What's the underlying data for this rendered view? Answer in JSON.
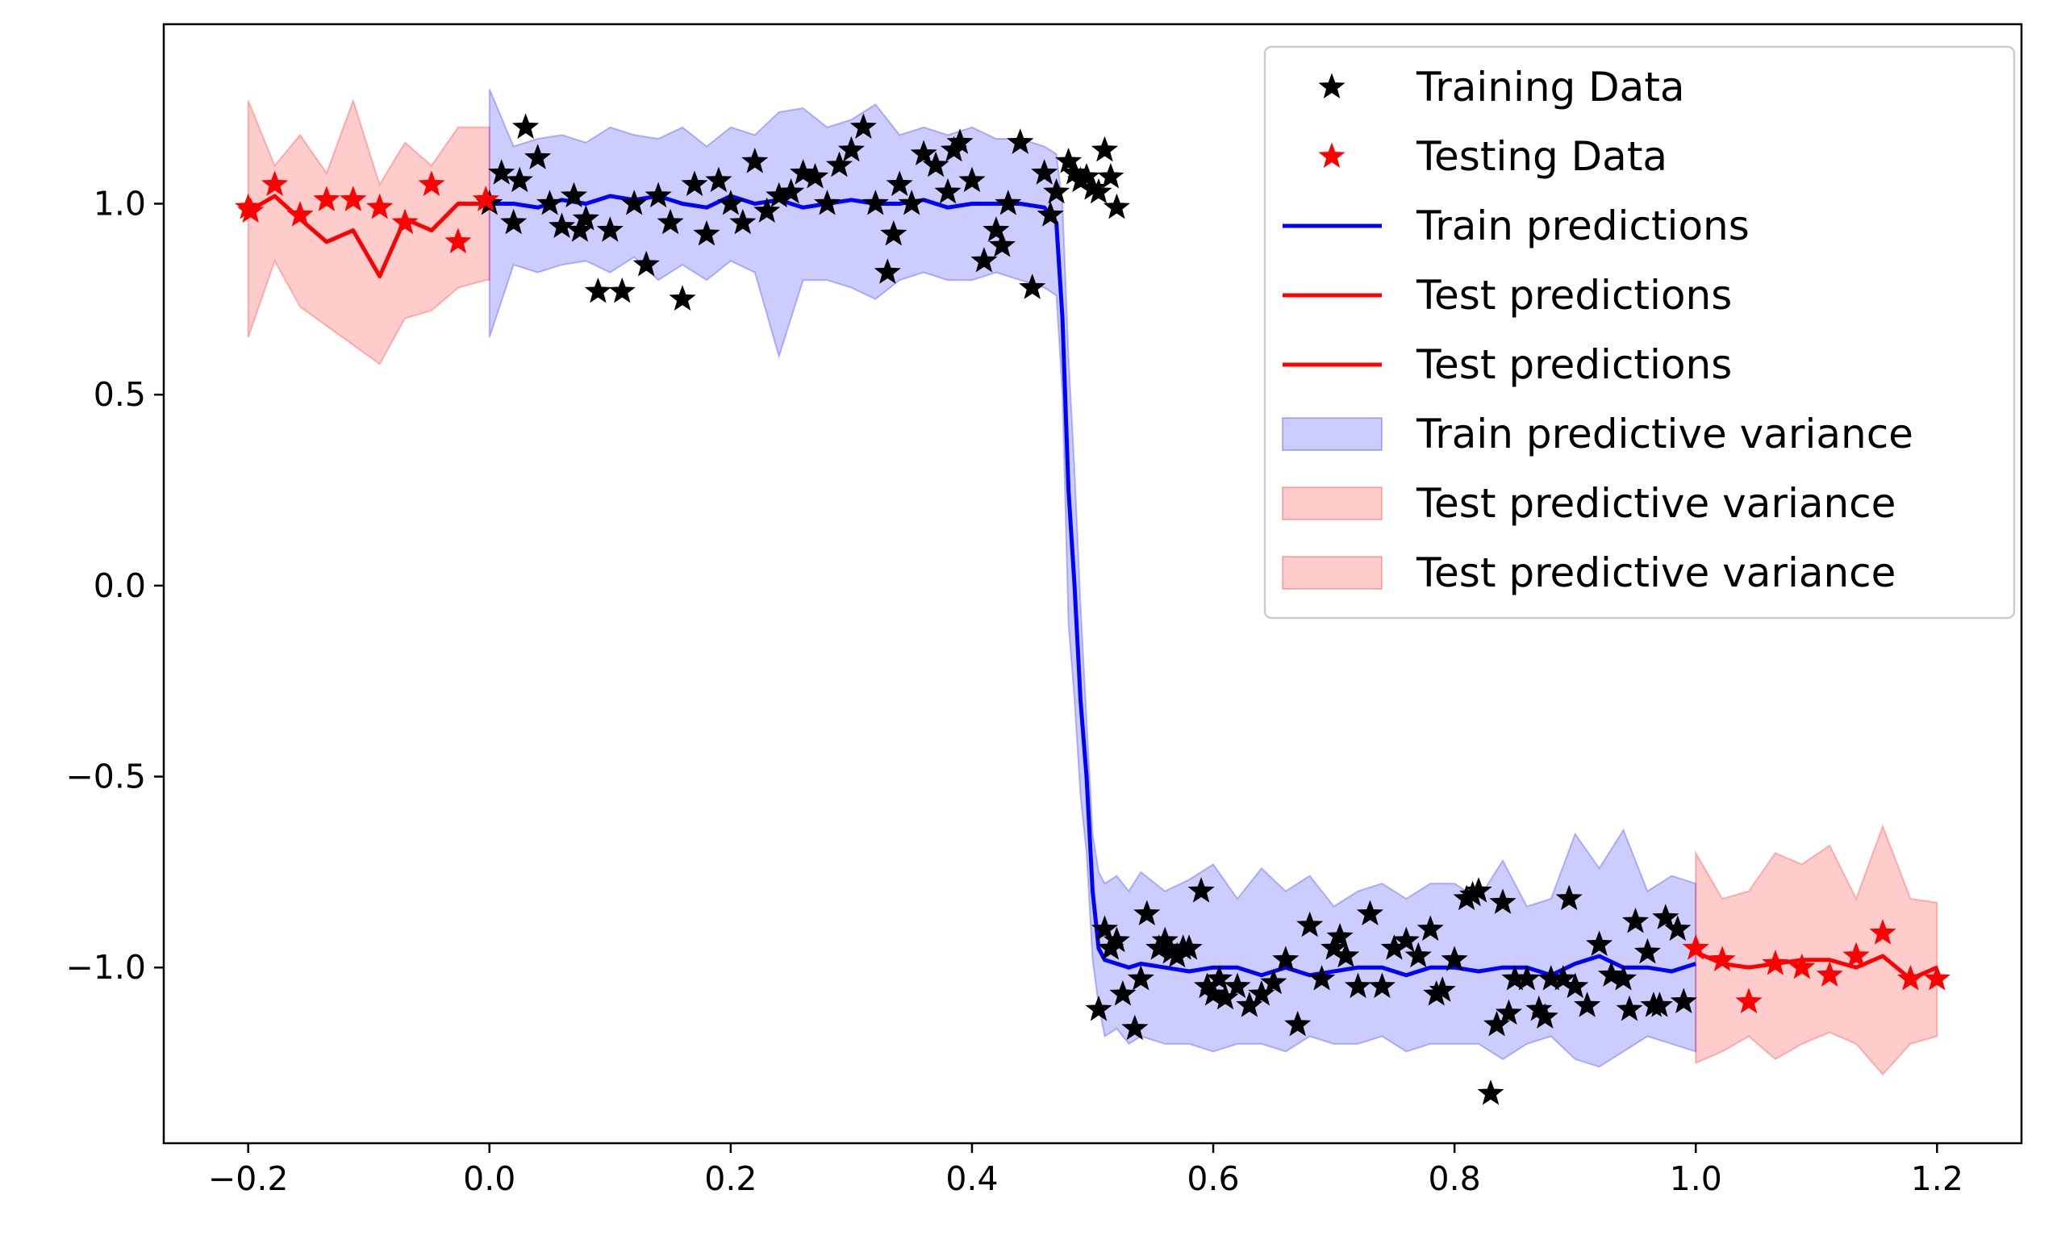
{
  "chart_data": {
    "type": "line",
    "title": "",
    "xlabel": "",
    "ylabel": "",
    "xlim": [
      -0.27,
      1.27
    ],
    "ylim": [
      -1.46,
      1.47
    ],
    "xticks": [
      -0.2,
      0.0,
      0.2,
      0.4,
      0.6,
      0.8,
      1.0,
      1.2
    ],
    "yticks": [
      -1.0,
      -0.5,
      0.0,
      0.5,
      1.0
    ],
    "xtick_labels": [
      "−0.2",
      "0.0",
      "0.2",
      "0.4",
      "0.6",
      "0.8",
      "1.0",
      "1.2"
    ],
    "ytick_labels": [
      "−1.0",
      "−0.5",
      "0.0",
      "0.5",
      "1.0"
    ],
    "grid": false,
    "legend_position": "top-right",
    "legend": [
      {
        "label": "Training Data",
        "kind": "marker",
        "color": "#000000"
      },
      {
        "label": "Testing Data",
        "kind": "marker",
        "color": "#ff0000"
      },
      {
        "label": "Train predictions",
        "kind": "line",
        "color": "#0000ff"
      },
      {
        "label": "Test predictions",
        "kind": "line",
        "color": "#ff0000"
      },
      {
        "label": "Test predictions",
        "kind": "line",
        "color": "#ff0000"
      },
      {
        "label": "Train predictive variance",
        "kind": "patch",
        "color": "#0000ff"
      },
      {
        "label": "Test predictive variance",
        "kind": "patch",
        "color": "#ff0000"
      },
      {
        "label": "Test predictive variance",
        "kind": "patch",
        "color": "#ff0000"
      }
    ],
    "series": [
      {
        "name": "Training Data",
        "kind": "scatter",
        "color": "#000000",
        "points": [
          [
            0.0,
            1.0
          ],
          [
            0.01,
            1.08
          ],
          [
            0.02,
            0.95
          ],
          [
            0.025,
            1.06
          ],
          [
            0.03,
            1.2
          ],
          [
            0.04,
            1.12
          ],
          [
            0.05,
            1.0
          ],
          [
            0.06,
            0.94
          ],
          [
            0.07,
            1.02
          ],
          [
            0.075,
            0.93
          ],
          [
            0.08,
            0.96
          ],
          [
            0.09,
            0.77
          ],
          [
            0.1,
            0.93
          ],
          [
            0.11,
            0.77
          ],
          [
            0.12,
            1.0
          ],
          [
            0.13,
            0.84
          ],
          [
            0.14,
            1.02
          ],
          [
            0.15,
            0.95
          ],
          [
            0.16,
            0.75
          ],
          [
            0.17,
            1.05
          ],
          [
            0.18,
            0.92
          ],
          [
            0.19,
            1.06
          ],
          [
            0.2,
            1.0
          ],
          [
            0.21,
            0.95
          ],
          [
            0.22,
            1.11
          ],
          [
            0.23,
            0.98
          ],
          [
            0.24,
            1.02
          ],
          [
            0.25,
            1.03
          ],
          [
            0.26,
            1.08
          ],
          [
            0.27,
            1.07
          ],
          [
            0.28,
            1.0
          ],
          [
            0.29,
            1.1
          ],
          [
            0.3,
            1.14
          ],
          [
            0.31,
            1.2
          ],
          [
            0.32,
            1.0
          ],
          [
            0.33,
            0.82
          ],
          [
            0.335,
            0.92
          ],
          [
            0.34,
            1.05
          ],
          [
            0.35,
            1.0
          ],
          [
            0.36,
            1.13
          ],
          [
            0.37,
            1.1
          ],
          [
            0.38,
            1.03
          ],
          [
            0.385,
            1.14
          ],
          [
            0.39,
            1.16
          ],
          [
            0.4,
            1.06
          ],
          [
            0.41,
            0.85
          ],
          [
            0.42,
            0.93
          ],
          [
            0.425,
            0.89
          ],
          [
            0.43,
            1.0
          ],
          [
            0.44,
            1.16
          ],
          [
            0.45,
            0.78
          ],
          [
            0.46,
            1.08
          ],
          [
            0.465,
            0.97
          ],
          [
            0.47,
            1.03
          ],
          [
            0.48,
            1.11
          ],
          [
            0.485,
            1.08
          ],
          [
            0.49,
            1.06
          ],
          [
            0.495,
            1.07
          ],
          [
            0.5,
            1.04
          ],
          [
            0.505,
            1.03
          ],
          [
            0.51,
            1.14
          ],
          [
            0.515,
            1.07
          ],
          [
            0.52,
            0.99
          ],
          [
            0.505,
            -1.11
          ],
          [
            0.51,
            -0.9
          ],
          [
            0.515,
            -0.95
          ],
          [
            0.52,
            -0.93
          ],
          [
            0.525,
            -1.07
          ],
          [
            0.535,
            -1.16
          ],
          [
            0.54,
            -1.03
          ],
          [
            0.545,
            -0.86
          ],
          [
            0.555,
            -0.95
          ],
          [
            0.56,
            -0.93
          ],
          [
            0.565,
            -0.96
          ],
          [
            0.57,
            -0.97
          ],
          [
            0.575,
            -0.95
          ],
          [
            0.58,
            -0.95
          ],
          [
            0.59,
            -0.8
          ],
          [
            0.595,
            -1.05
          ],
          [
            0.6,
            -1.07
          ],
          [
            0.605,
            -1.03
          ],
          [
            0.61,
            -1.08
          ],
          [
            0.62,
            -1.05
          ],
          [
            0.63,
            -1.1
          ],
          [
            0.64,
            -1.07
          ],
          [
            0.65,
            -1.04
          ],
          [
            0.66,
            -0.98
          ],
          [
            0.67,
            -1.15
          ],
          [
            0.68,
            -0.89
          ],
          [
            0.69,
            -1.03
          ],
          [
            0.7,
            -0.95
          ],
          [
            0.705,
            -0.92
          ],
          [
            0.71,
            -0.97
          ],
          [
            0.72,
            -1.05
          ],
          [
            0.73,
            -0.86
          ],
          [
            0.74,
            -1.05
          ],
          [
            0.75,
            -0.95
          ],
          [
            0.76,
            -0.93
          ],
          [
            0.77,
            -0.97
          ],
          [
            0.78,
            -0.9
          ],
          [
            0.785,
            -1.07
          ],
          [
            0.79,
            -1.06
          ],
          [
            0.8,
            -0.98
          ],
          [
            0.81,
            -0.82
          ],
          [
            0.815,
            -0.81
          ],
          [
            0.82,
            -0.8
          ],
          [
            0.83,
            -1.33
          ],
          [
            0.835,
            -1.15
          ],
          [
            0.84,
            -0.83
          ],
          [
            0.845,
            -1.12
          ],
          [
            0.85,
            -1.03
          ],
          [
            0.86,
            -1.03
          ],
          [
            0.87,
            -1.11
          ],
          [
            0.875,
            -1.13
          ],
          [
            0.88,
            -1.03
          ],
          [
            0.89,
            -1.03
          ],
          [
            0.895,
            -0.82
          ],
          [
            0.9,
            -1.05
          ],
          [
            0.91,
            -1.1
          ],
          [
            0.92,
            -0.94
          ],
          [
            0.93,
            -1.02
          ],
          [
            0.94,
            -1.03
          ],
          [
            0.945,
            -1.11
          ],
          [
            0.95,
            -0.88
          ],
          [
            0.96,
            -0.96
          ],
          [
            0.965,
            -1.1
          ],
          [
            0.97,
            -1.1
          ],
          [
            0.975,
            -0.87
          ],
          [
            0.985,
            -0.9
          ],
          [
            0.99,
            -1.09
          ]
        ]
      },
      {
        "name": "Testing Data",
        "kind": "scatter",
        "color": "#ff0000",
        "points": [
          [
            -0.2,
            0.99
          ],
          [
            -0.198,
            0.98
          ],
          [
            -0.178,
            1.05
          ],
          [
            -0.157,
            0.97
          ],
          [
            -0.135,
            1.01
          ],
          [
            -0.113,
            1.01
          ],
          [
            -0.091,
            0.99
          ],
          [
            -0.07,
            0.95
          ],
          [
            -0.048,
            1.05
          ],
          [
            -0.026,
            0.9
          ],
          [
            -0.003,
            1.01
          ],
          [
            1.0,
            -0.95
          ],
          [
            1.022,
            -0.98
          ],
          [
            1.044,
            -1.09
          ],
          [
            1.066,
            -0.99
          ],
          [
            1.088,
            -1.0
          ],
          [
            1.111,
            -1.02
          ],
          [
            1.133,
            -0.97
          ],
          [
            1.155,
            -0.91
          ],
          [
            1.178,
            -1.03
          ],
          [
            1.2,
            -1.03
          ]
        ]
      },
      {
        "name": "Train predictions",
        "kind": "line",
        "color": "#0000ff",
        "x": [
          0.0,
          0.02,
          0.04,
          0.06,
          0.08,
          0.1,
          0.12,
          0.14,
          0.16,
          0.18,
          0.2,
          0.22,
          0.24,
          0.26,
          0.28,
          0.3,
          0.32,
          0.34,
          0.36,
          0.38,
          0.4,
          0.42,
          0.44,
          0.46,
          0.47,
          0.475,
          0.48,
          0.485,
          0.49,
          0.495,
          0.5,
          0.505,
          0.51,
          0.52,
          0.53,
          0.54,
          0.56,
          0.58,
          0.6,
          0.62,
          0.64,
          0.66,
          0.68,
          0.7,
          0.72,
          0.74,
          0.76,
          0.78,
          0.8,
          0.82,
          0.84,
          0.86,
          0.88,
          0.9,
          0.92,
          0.94,
          0.96,
          0.98,
          1.0
        ],
        "y": [
          1.0,
          1.0,
          0.99,
          1.01,
          1.0,
          1.02,
          1.01,
          1.02,
          1.0,
          0.99,
          1.02,
          1.0,
          1.01,
          0.99,
          1.0,
          1.01,
          1.0,
          1.0,
          1.01,
          0.99,
          1.0,
          1.0,
          1.0,
          0.99,
          0.95,
          0.7,
          0.25,
          0.0,
          -0.3,
          -0.5,
          -0.8,
          -0.95,
          -0.98,
          -0.99,
          -1.0,
          -0.99,
          -1.0,
          -1.01,
          -1.0,
          -1.0,
          -1.02,
          -1.0,
          -1.02,
          -1.01,
          -1.0,
          -1.0,
          -1.02,
          -1.0,
          -1.0,
          -1.01,
          -1.0,
          -1.0,
          -1.02,
          -0.99,
          -0.97,
          -1.0,
          -1.0,
          -1.01,
          -0.99
        ]
      },
      {
        "name": "Test predictions",
        "kind": "line",
        "color": "#ff0000",
        "x": [
          -0.2,
          -0.178,
          -0.157,
          -0.135,
          -0.113,
          -0.091,
          -0.07,
          -0.048,
          -0.026,
          -0.003,
          0.0
        ],
        "y": [
          0.98,
          1.02,
          0.96,
          0.9,
          0.93,
          0.81,
          0.96,
          0.93,
          1.0,
          1.0,
          1.0
        ]
      },
      {
        "name": "Test predictions",
        "kind": "line",
        "color": "#ff0000",
        "x": [
          1.0,
          1.022,
          1.044,
          1.066,
          1.088,
          1.111,
          1.133,
          1.155,
          1.178,
          1.2
        ],
        "y": [
          -0.96,
          -0.99,
          -1.0,
          -0.99,
          -0.98,
          -0.98,
          -1.0,
          -0.97,
          -1.03,
          -1.0
        ]
      },
      {
        "name": "Train predictive variance",
        "kind": "band",
        "color": "#0000ff",
        "x": [
          0.0,
          0.02,
          0.04,
          0.06,
          0.08,
          0.1,
          0.12,
          0.14,
          0.16,
          0.18,
          0.2,
          0.22,
          0.24,
          0.26,
          0.28,
          0.3,
          0.32,
          0.34,
          0.36,
          0.38,
          0.4,
          0.42,
          0.44,
          0.46,
          0.47,
          0.475,
          0.48,
          0.485,
          0.49,
          0.495,
          0.5,
          0.505,
          0.51,
          0.52,
          0.53,
          0.54,
          0.56,
          0.58,
          0.6,
          0.62,
          0.64,
          0.66,
          0.68,
          0.7,
          0.72,
          0.74,
          0.76,
          0.78,
          0.8,
          0.82,
          0.84,
          0.86,
          0.88,
          0.9,
          0.92,
          0.94,
          0.96,
          0.98,
          1.0
        ],
        "upper": [
          1.3,
          1.15,
          1.17,
          1.18,
          1.16,
          1.2,
          1.18,
          1.17,
          1.2,
          1.15,
          1.2,
          1.18,
          1.24,
          1.25,
          1.2,
          1.22,
          1.26,
          1.18,
          1.2,
          1.18,
          1.2,
          1.17,
          1.17,
          1.15,
          1.13,
          1.0,
          0.6,
          0.3,
          -0.05,
          -0.35,
          -0.65,
          -0.75,
          -0.78,
          -0.76,
          -0.8,
          -0.75,
          -0.8,
          -0.77,
          -0.73,
          -0.82,
          -0.74,
          -0.8,
          -0.76,
          -0.84,
          -0.8,
          -0.78,
          -0.82,
          -0.78,
          -0.78,
          -0.82,
          -0.72,
          -0.84,
          -0.82,
          -0.65,
          -0.74,
          -0.64,
          -0.8,
          -0.76,
          -0.78
        ],
        "lower": [
          0.65,
          0.84,
          0.82,
          0.84,
          0.85,
          0.82,
          0.86,
          0.8,
          0.84,
          0.8,
          0.85,
          0.82,
          0.6,
          0.8,
          0.8,
          0.78,
          0.75,
          0.8,
          0.82,
          0.8,
          0.8,
          0.82,
          0.8,
          0.78,
          0.76,
          0.5,
          -0.1,
          -0.3,
          -0.55,
          -0.7,
          -0.98,
          -1.1,
          -1.18,
          -1.16,
          -1.2,
          -1.18,
          -1.2,
          -1.2,
          -1.22,
          -1.2,
          -1.2,
          -1.22,
          -1.18,
          -1.2,
          -1.2,
          -1.18,
          -1.22,
          -1.2,
          -1.2,
          -1.2,
          -1.24,
          -1.2,
          -1.18,
          -1.24,
          -1.26,
          -1.22,
          -1.18,
          -1.2,
          -1.22
        ]
      },
      {
        "name": "Test predictive variance",
        "kind": "band",
        "color": "#ff0000",
        "x": [
          -0.2,
          -0.178,
          -0.157,
          -0.135,
          -0.113,
          -0.091,
          -0.07,
          -0.048,
          -0.026,
          -0.003,
          0.0
        ],
        "upper": [
          1.27,
          1.1,
          1.18,
          1.08,
          1.27,
          1.05,
          1.16,
          1.1,
          1.2,
          1.2,
          1.2
        ],
        "lower": [
          0.65,
          0.85,
          0.73,
          0.68,
          0.63,
          0.58,
          0.7,
          0.72,
          0.78,
          0.8,
          0.8
        ]
      },
      {
        "name": "Test predictive variance",
        "kind": "band",
        "color": "#ff0000",
        "x": [
          1.0,
          1.022,
          1.044,
          1.066,
          1.088,
          1.111,
          1.133,
          1.155,
          1.178,
          1.2
        ],
        "upper": [
          -0.7,
          -0.82,
          -0.8,
          -0.7,
          -0.73,
          -0.68,
          -0.82,
          -0.63,
          -0.82,
          -0.83
        ],
        "lower": [
          -1.25,
          -1.22,
          -1.18,
          -1.24,
          -1.2,
          -1.17,
          -1.2,
          -1.28,
          -1.2,
          -1.18
        ]
      }
    ]
  }
}
